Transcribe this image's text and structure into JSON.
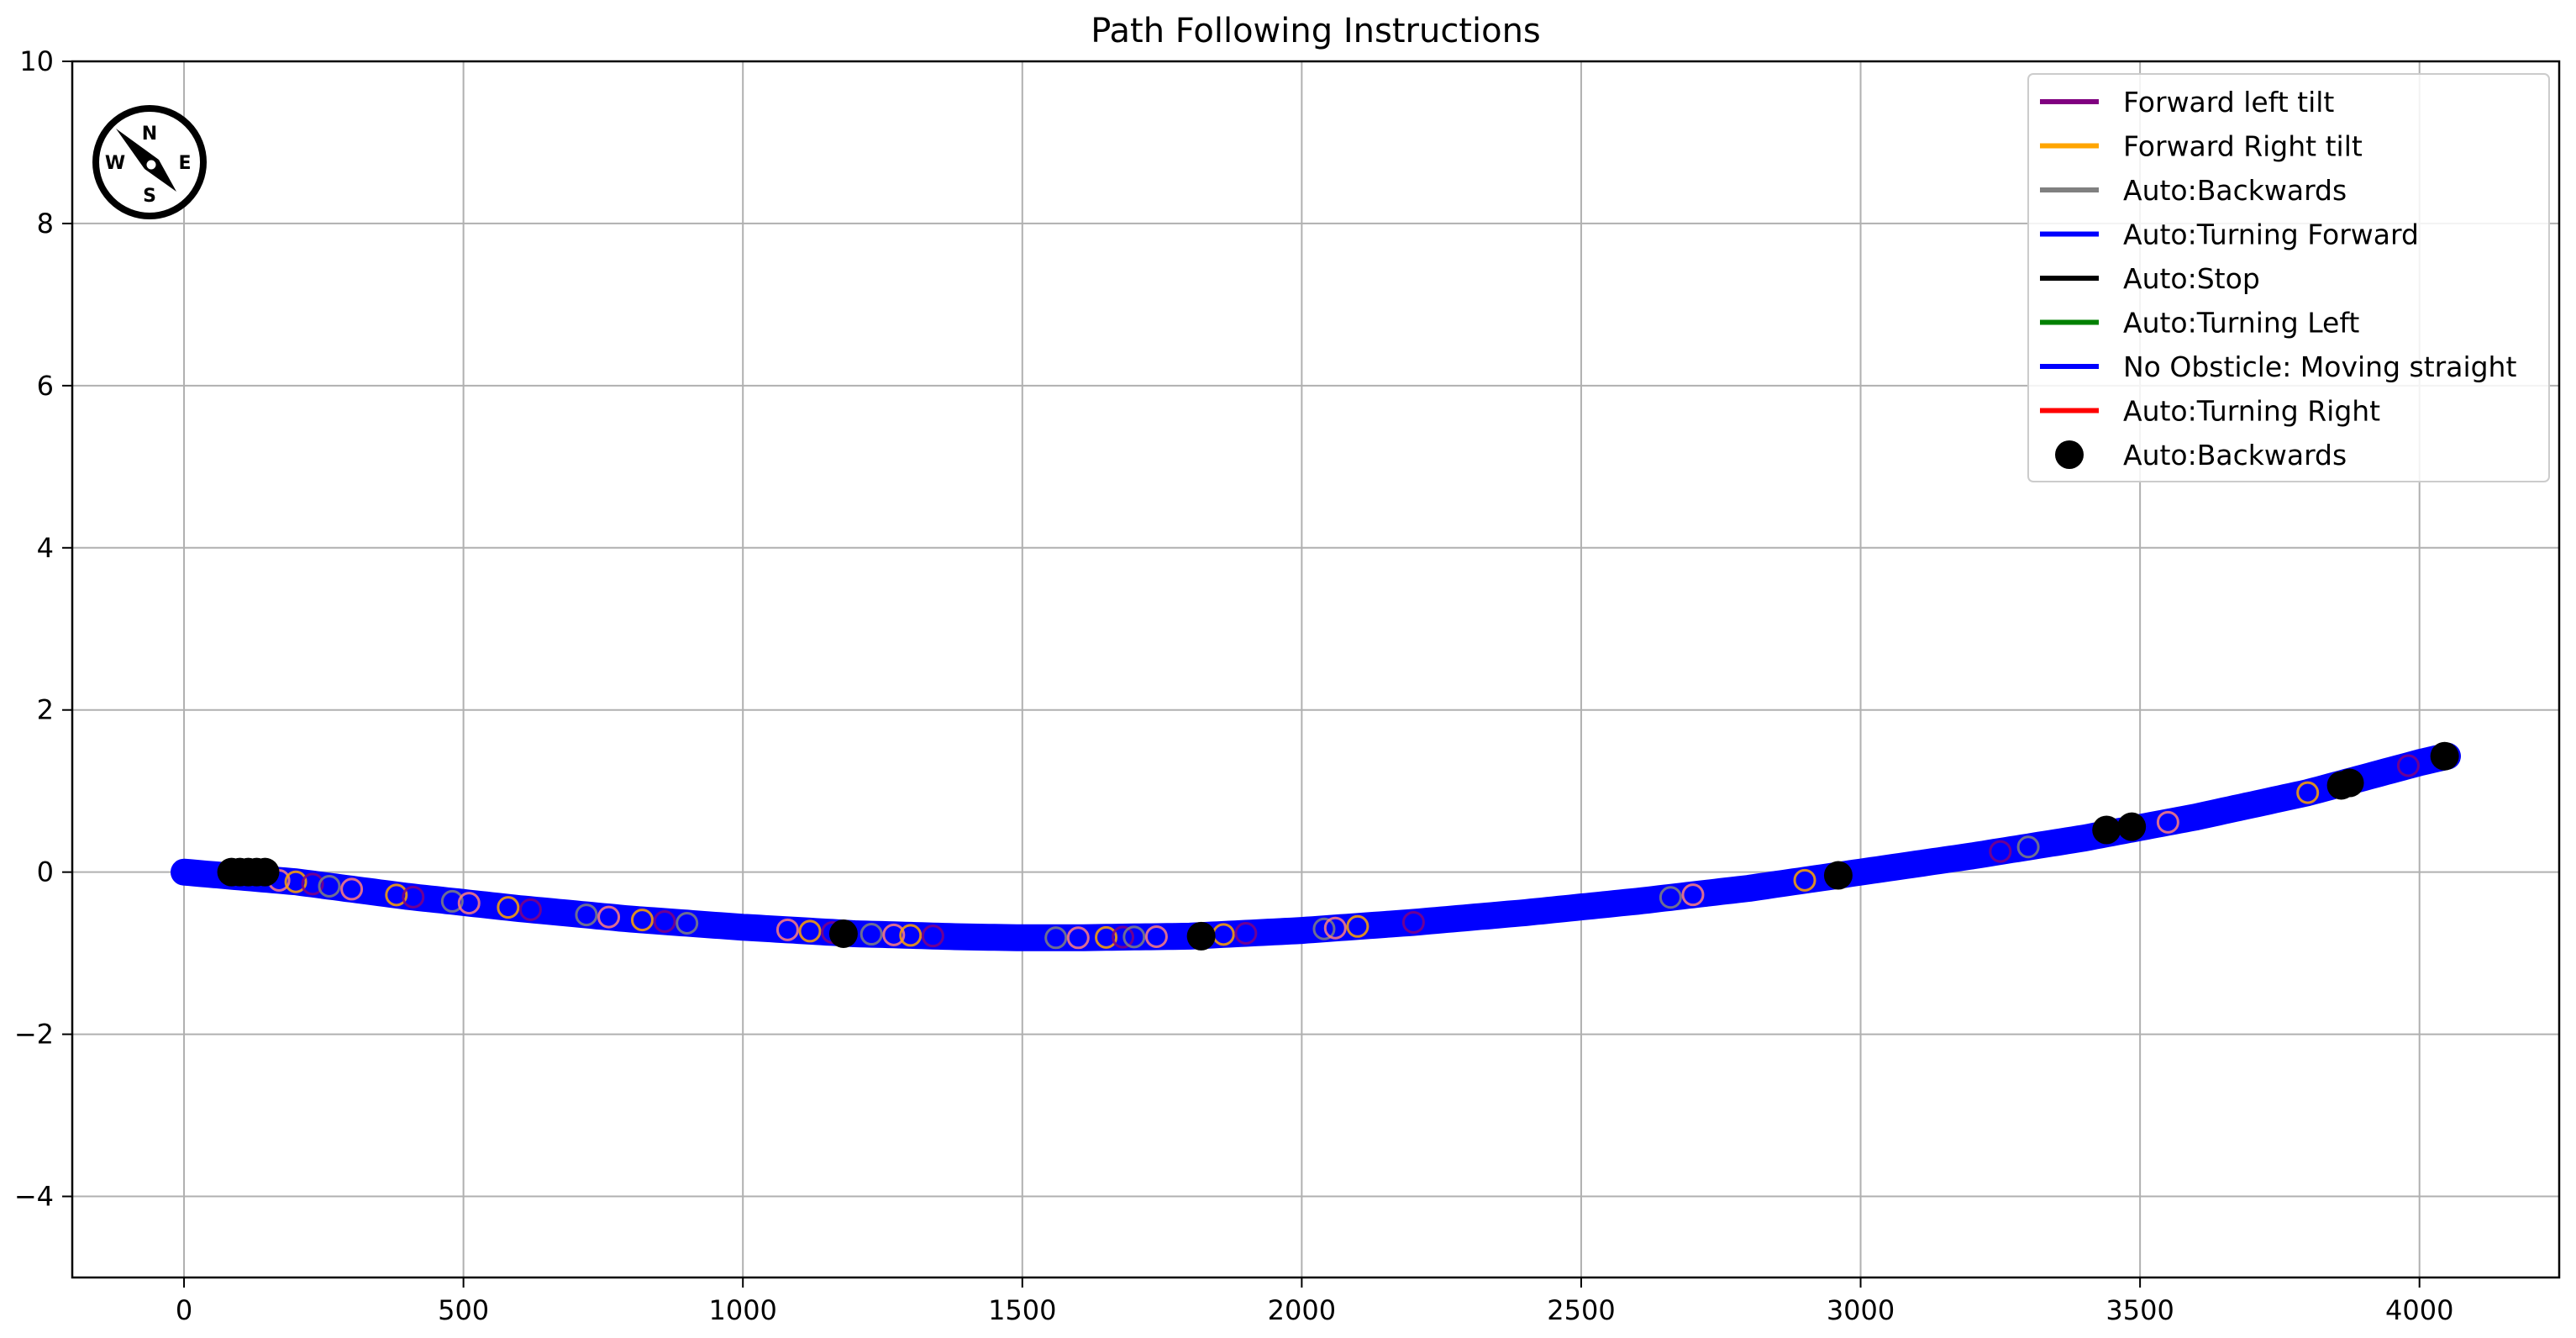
{
  "chart_data": {
    "type": "scatter",
    "title": "Path Following Instructions",
    "xlabel": "",
    "ylabel": "",
    "xlim": [
      -200,
      4250
    ],
    "ylim": [
      -5,
      10
    ],
    "xticks": [
      0,
      500,
      1000,
      1500,
      2000,
      2500,
      3000,
      3500,
      4000
    ],
    "yticks": [
      -4,
      -2,
      0,
      2,
      4,
      6,
      8,
      10
    ],
    "xtick_labels": [
      "0",
      "500",
      "1000",
      "1500",
      "2000",
      "2500",
      "3000",
      "3500",
      "4000"
    ],
    "ytick_labels": [
      "−4",
      "−2",
      "0",
      "2",
      "4",
      "6",
      "8",
      "10"
    ],
    "grid": true,
    "legend_position": "top-right",
    "path": {
      "x": [
        0,
        200,
        400,
        600,
        800,
        1000,
        1200,
        1400,
        1500,
        1600,
        1800,
        2000,
        2200,
        2400,
        2600,
        2800,
        3000,
        3200,
        3400,
        3600,
        3800,
        4000,
        4050
      ],
      "y": [
        0,
        -0.12,
        -0.3,
        -0.45,
        -0.58,
        -0.68,
        -0.76,
        -0.8,
        -0.81,
        -0.81,
        -0.79,
        -0.72,
        -0.62,
        -0.5,
        -0.36,
        -0.2,
        0.0,
        0.2,
        0.42,
        0.68,
        0.98,
        1.35,
        1.43
      ]
    },
    "path_color": "#0000ff",
    "tilt_marker_x": [
      170,
      200,
      230,
      260,
      300,
      380,
      410,
      480,
      510,
      580,
      620,
      720,
      760,
      820,
      860,
      900,
      1080,
      1120,
      1160,
      1230,
      1270,
      1300,
      1340,
      1560,
      1600,
      1650,
      1680,
      1700,
      1740,
      1860,
      1900,
      2040,
      2060,
      2100,
      2200,
      2660,
      2700,
      2900,
      3250,
      3300,
      3550,
      3800,
      3980
    ],
    "tilt_colors": [
      "#ff7f7f",
      "#ffa500",
      "#800080",
      "#808080"
    ],
    "special_points": {
      "x": [
        85,
        100,
        115,
        130,
        145,
        1180,
        1820,
        2960,
        3440,
        3485,
        3860,
        3875,
        4045
      ],
      "y": [
        0.0,
        0.0,
        0.0,
        0.0,
        0.0,
        -0.76,
        -0.79,
        -0.04,
        0.52,
        0.56,
        1.07,
        1.1,
        1.43
      ]
    },
    "legend": [
      {
        "label": "Forward left tilt",
        "color": "#800080",
        "kind": "line"
      },
      {
        "label": "Forward Right tilt",
        "color": "#ffa500",
        "kind": "line"
      },
      {
        "label": "Auto:Backwards",
        "color": "#808080",
        "kind": "line"
      },
      {
        "label": "Auto:Turning Forward",
        "color": "#0000ff",
        "kind": "line"
      },
      {
        "label": "Auto:Stop",
        "color": "#000000",
        "kind": "line"
      },
      {
        "label": "Auto:Turning Left",
        "color": "#008000",
        "kind": "line"
      },
      {
        "label": "No Obsticle: Moving straight",
        "color": "#0000ff",
        "kind": "line"
      },
      {
        "label": "Auto:Turning Right",
        "color": "#ff0000",
        "kind": "line"
      },
      {
        "label": "Auto:Backwards",
        "color": "#000000",
        "kind": "dot"
      }
    ],
    "compass": {
      "n": "N",
      "s": "S",
      "e": "E",
      "w": "W"
    }
  }
}
